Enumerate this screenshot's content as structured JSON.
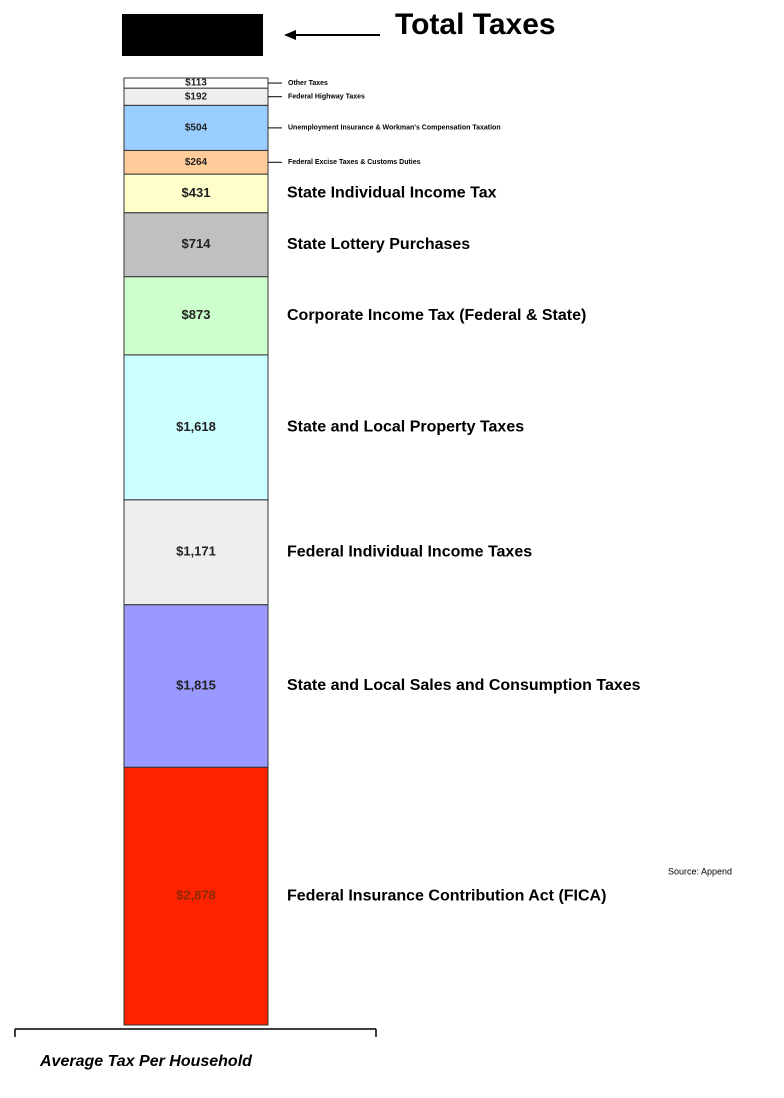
{
  "chart_data": {
    "type": "stacked_bar",
    "title": "Total Taxes",
    "x_label": "Average Tax Per Household",
    "source": "Source: Append",
    "series": [
      {
        "name": "Federal Insurance Contribution Act (FICA)",
        "color": "#ff2200",
        "values": [
          2878
        ],
        "value_labels": [
          "$2,878"
        ]
      },
      {
        "name": "State and Local Sales and Consumption Taxes",
        "color": "#9999ff",
        "values": [
          1815
        ],
        "value_labels": [
          "$1,815"
        ]
      },
      {
        "name": "Federal Individual Income Taxes",
        "color": "#eeeeee",
        "values": [
          1171
        ],
        "value_labels": [
          "$1,171"
        ]
      },
      {
        "name": "State and Local Property Taxes",
        "color": "#ccffff",
        "values": [
          1618
        ],
        "value_labels": [
          "$1,618"
        ]
      },
      {
        "name": "Corporate Income Tax (Federal & State)",
        "color": "#ccffcc",
        "values": [
          873
        ],
        "value_labels": [
          "$873"
        ]
      },
      {
        "name": "State Lottery Purchases",
        "color": "#c0c0c0",
        "values": [
          714
        ],
        "value_labels": [
          "$714"
        ]
      },
      {
        "name": "State Individual Income Tax",
        "color": "#ffffcc",
        "values": [
          431
        ],
        "value_labels": [
          "$431"
        ]
      },
      {
        "name": "Federal Excise Taxes & Customs Duties",
        "color": "#ffcc99",
        "values": [
          264
        ],
        "value_labels": [
          "$264"
        ]
      },
      {
        "name": "Unemployment Insurance & Workman's Compensation Taxation",
        "color": "#99ccff",
        "values": [
          504
        ],
        "value_labels": [
          "$504"
        ]
      },
      {
        "name": "Federal Highway Taxes",
        "color": "#eeeeee",
        "values": [
          192
        ],
        "value_labels": [
          "$192"
        ]
      },
      {
        "name": "Other Taxes",
        "color": "#ffffff",
        "values": [
          113
        ],
        "value_labels": [
          "$113"
        ]
      }
    ]
  }
}
